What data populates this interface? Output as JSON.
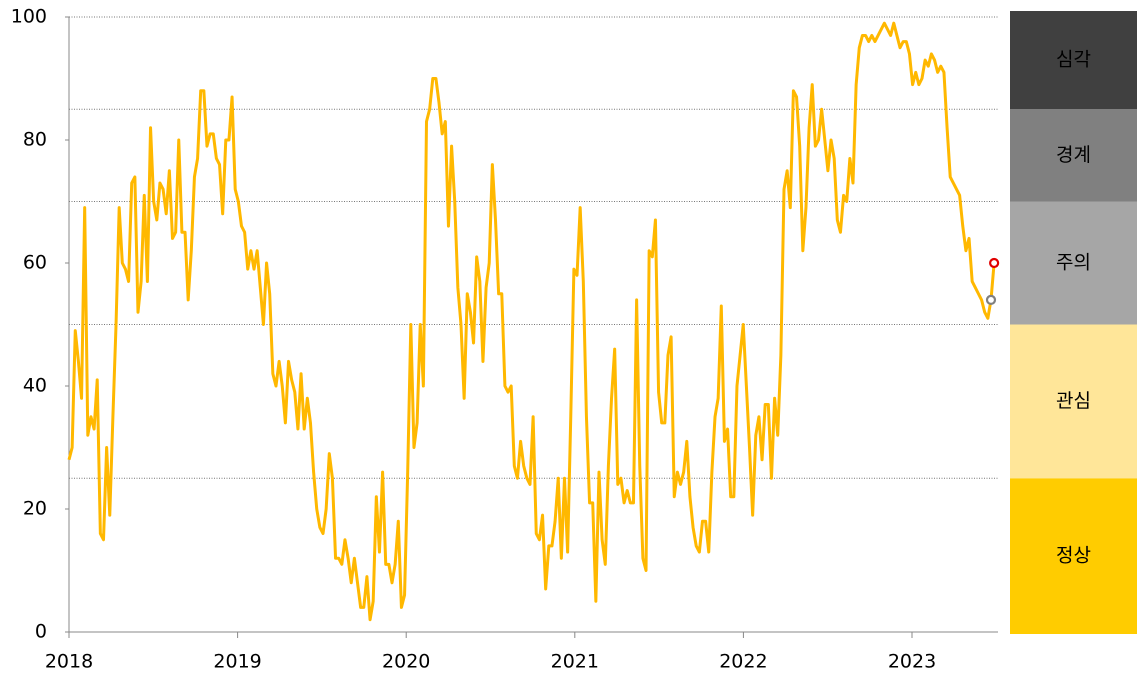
{
  "chart_data": {
    "type": "line",
    "x": [
      2018,
      2018.0186,
      2018.0372,
      2018.0558,
      2018.0744,
      2018.093,
      2018.1116,
      2018.1302,
      2018.1488,
      2018.1674,
      2018.186,
      2018.2046,
      2018.2232,
      2018.2418,
      2018.2604,
      2018.279,
      2018.2976,
      2018.3162,
      2018.3348,
      2018.3534,
      2018.372,
      2018.3906,
      2018.4092,
      2018.4278,
      2018.4464,
      2018.465,
      2018.4836,
      2018.5022,
      2018.5208,
      2018.5394,
      2018.558,
      2018.5766,
      2018.5952,
      2018.6138,
      2018.6324,
      2018.651,
      2018.6696,
      2018.6882,
      2018.7068,
      2018.7254,
      2018.744,
      2018.7626,
      2018.7812,
      2018.7998,
      2018.8184,
      2018.837,
      2018.8556,
      2018.8742,
      2018.8928,
      2018.9114,
      2018.93,
      2018.9486,
      2018.9672,
      2018.9858,
      2019.0044,
      2019.023,
      2019.0416,
      2019.0602,
      2019.0788,
      2019.0974,
      2019.116,
      2019.1346,
      2019.1532,
      2019.1718,
      2019.1904,
      2019.209,
      2019.2276,
      2019.2462,
      2019.2648,
      2019.2834,
      2019.302,
      2019.3206,
      2019.3392,
      2019.3578,
      2019.3764,
      2019.395,
      2019.4136,
      2019.4322,
      2019.4508,
      2019.4694,
      2019.488,
      2019.5066,
      2019.5252,
      2019.5438,
      2019.5624,
      2019.581,
      2019.5996,
      2019.6182,
      2019.6368,
      2019.6554,
      2019.674,
      2019.6926,
      2019.7112,
      2019.7298,
      2019.7484,
      2019.767,
      2019.7856,
      2019.8042,
      2019.8228,
      2019.8414,
      2019.86,
      2019.8786,
      2019.8972,
      2019.9158,
      2019.9344,
      2019.953,
      2019.9716,
      2019.9902,
      2020.0088,
      2020.0274,
      2020.046,
      2020.0646,
      2020.0832,
      2020.1018,
      2020.1204,
      2020.139,
      2020.1576,
      2020.1762,
      2020.1948,
      2020.2134,
      2020.232,
      2020.2506,
      2020.2692,
      2020.2878,
      2020.3064,
      2020.325,
      2020.3436,
      2020.3622,
      2020.3808,
      2020.3994,
      2020.418,
      2020.4366,
      2020.4552,
      2020.4738,
      2020.4924,
      2020.511,
      2020.5296,
      2020.5482,
      2020.5668,
      2020.5854,
      2020.604,
      2020.6226,
      2020.6412,
      2020.6598,
      2020.6784,
      2020.697,
      2020.7156,
      2020.7342,
      2020.7528,
      2020.7714,
      2020.79,
      2020.8086,
      2020.8272,
      2020.8458,
      2020.8644,
      2020.883,
      2020.9016,
      2020.9202,
      2020.9388,
      2020.9574,
      2020.976,
      2020.9946,
      2021.0132,
      2021.0318,
      2021.0504,
      2021.069,
      2021.0876,
      2021.1062,
      2021.1248,
      2021.1434,
      2021.162,
      2021.1806,
      2021.1992,
      2021.2178,
      2021.2364,
      2021.255,
      2021.2736,
      2021.2922,
      2021.3108,
      2021.3294,
      2021.348,
      2021.3666,
      2021.3852,
      2021.4038,
      2021.4224,
      2021.441,
      2021.4596,
      2021.4782,
      2021.4968,
      2021.5154,
      2021.534,
      2021.5526,
      2021.5712,
      2021.5898,
      2021.6084,
      2021.627,
      2021.6456,
      2021.6642,
      2021.6828,
      2021.7014,
      2021.72,
      2021.7386,
      2021.7572,
      2021.7758,
      2021.7944,
      2021.813,
      2021.8316,
      2021.8502,
      2021.8688,
      2021.8874,
      2021.906,
      2021.9246,
      2021.9432,
      2021.9618,
      2021.9804,
      2021.999,
      2022.0176,
      2022.0362,
      2022.0548,
      2022.0734,
      2022.092,
      2022.1106,
      2022.1292,
      2022.1478,
      2022.1664,
      2022.185,
      2022.2036,
      2022.2222,
      2022.2408,
      2022.2594,
      2022.278,
      2022.2966,
      2022.3152,
      2022.3338,
      2022.3524,
      2022.371,
      2022.3896,
      2022.4082,
      2022.4268,
      2022.4454,
      2022.464,
      2022.4826,
      2022.5012,
      2022.5198,
      2022.5384,
      2022.557,
      2022.5756,
      2022.5942,
      2022.6128,
      2022.6314,
      2022.65,
      2022.6686,
      2022.6872,
      2022.7058,
      2022.7244,
      2022.743,
      2022.7616,
      2022.7802,
      2022.7988,
      2022.8174,
      2022.836,
      2022.8546,
      2022.8732,
      2022.8918,
      2022.9104,
      2022.929,
      2022.9476,
      2022.9662,
      2022.9848,
      2023.0034,
      2023.022,
      2023.0406,
      2023.0592,
      2023.0778,
      2023.0964,
      2023.115,
      2023.1336,
      2023.1522,
      2023.1708,
      2023.1894,
      2023.208,
      2023.2266,
      2023.2452,
      2023.2638,
      2023.2824,
      2023.301,
      2023.3196,
      2023.3382,
      2023.3568,
      2023.3754,
      2023.394,
      2023.4126,
      2023.4312,
      2023.4498,
      2023.4684,
      2023.487
    ],
    "series": [
      {
        "color": "#ffb800",
        "end_markers": [
          "#808080",
          "#e00000"
        ],
        "values": [
          28,
          30,
          49,
          44,
          38,
          69,
          32,
          35,
          33,
          41,
          16,
          15,
          30,
          19,
          35,
          50,
          69,
          60,
          59,
          57,
          73,
          74,
          52,
          57,
          71,
          57,
          82,
          70,
          67,
          73,
          72,
          68,
          75,
          64,
          65,
          80,
          65,
          65,
          54,
          62,
          74,
          77,
          88,
          88,
          79,
          81,
          81,
          77,
          76,
          68,
          80,
          80,
          87,
          72,
          70,
          66,
          65,
          59,
          62,
          59,
          62,
          56,
          50,
          60,
          55,
          42,
          40,
          44,
          40,
          34,
          44,
          41,
          39,
          33,
          42,
          33,
          38,
          34,
          26,
          20,
          17,
          16,
          20,
          29,
          25,
          12,
          12,
          11,
          15,
          12,
          8,
          12,
          8,
          4,
          4,
          9,
          2,
          5,
          22,
          13,
          26,
          11,
          11,
          8,
          11,
          18,
          4,
          6,
          26,
          50,
          30,
          34,
          50,
          40,
          83,
          85,
          90,
          90,
          86,
          81,
          83,
          66,
          79,
          70,
          56,
          50,
          38,
          55,
          52,
          47,
          61,
          57,
          44,
          56,
          60,
          76,
          67,
          55,
          55,
          40,
          39,
          40,
          27,
          25,
          31,
          27,
          25,
          24,
          35,
          16,
          15,
          19,
          7,
          14,
          14,
          18,
          25,
          12,
          25,
          13,
          35,
          59,
          58,
          69,
          57,
          35,
          21,
          21,
          5,
          26,
          15,
          11,
          27,
          38,
          46,
          24,
          25,
          21,
          23,
          21,
          21,
          54,
          27,
          12,
          10,
          62,
          61,
          67,
          39,
          34,
          34,
          45,
          48,
          22,
          26,
          24,
          26,
          31,
          22,
          17,
          14,
          13,
          18,
          18,
          13,
          26,
          35,
          38,
          53,
          31,
          33,
          22,
          22,
          40,
          45,
          50,
          40,
          30,
          19,
          32,
          35,
          28,
          37,
          37,
          25,
          38,
          32,
          45,
          72,
          75,
          69,
          88,
          87,
          79,
          62,
          69,
          82,
          89,
          79,
          80,
          85,
          80,
          75,
          80,
          77,
          67,
          65,
          71,
          70,
          77,
          73,
          89,
          95,
          97,
          97,
          96,
          97,
          96,
          97,
          98,
          99,
          98,
          97,
          99,
          97,
          95,
          96,
          96,
          94,
          89,
          91,
          89,
          90,
          93,
          92,
          94,
          93,
          91,
          92,
          91,
          82,
          74,
          73,
          72,
          71,
          66,
          62,
          64,
          57,
          56,
          55,
          54,
          52,
          51,
          54,
          60
        ]
      }
    ],
    "xlim": [
      2018,
      2023.51
    ],
    "xticks": [
      2018,
      2019,
      2020,
      2021,
      2022,
      2023
    ],
    "ylim": [
      0,
      100
    ],
    "yticks": [
      0,
      20,
      40,
      60,
      80,
      100
    ],
    "zones": [
      {
        "label": "정상",
        "from": 0,
        "to": 25,
        "color": "#ffcc00",
        "text_color": "#333333"
      },
      {
        "label": "관심",
        "from": 25,
        "to": 50,
        "color": "#ffe699",
        "text_color": "#333333"
      },
      {
        "label": "주의",
        "from": 50,
        "to": 70,
        "color": "#a6a6a6",
        "text_color": "#222222"
      },
      {
        "label": "경계",
        "from": 70,
        "to": 85,
        "color": "#808080",
        "text_color": "#ffffff"
      },
      {
        "label": "심각",
        "from": 85,
        "to": 100,
        "color": "#404040",
        "text_color": "#ffffff"
      }
    ]
  }
}
